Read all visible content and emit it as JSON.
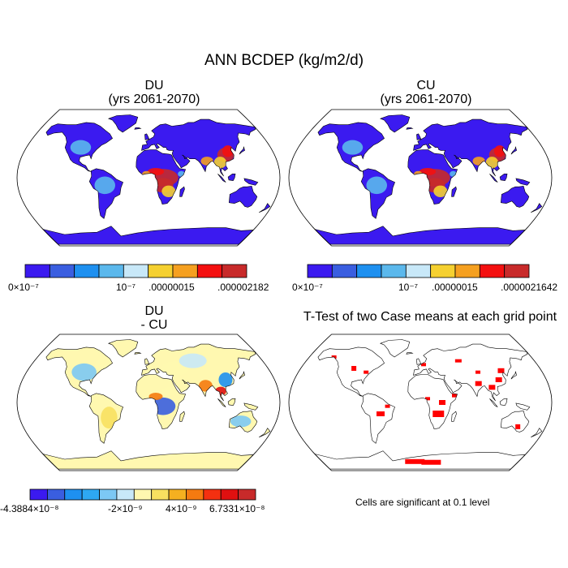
{
  "title": "ANN BCDEP (kg/m2/d)",
  "panels": [
    {
      "id": "du",
      "line1": "DU",
      "line2": "(yrs 2061-2070)"
    },
    {
      "id": "cu",
      "line1": "CU",
      "line2": "(yrs 2061-2070)"
    },
    {
      "id": "diff",
      "line1": "DU",
      "line2": "- CU"
    },
    {
      "id": "ttest",
      "line1": "T-Test of two Case means at each grid point"
    }
  ],
  "colorbars": {
    "du": {
      "colors": [
        "#3B1AF0",
        "#3A5EE0",
        "#1E90F0",
        "#5BB8EC",
        "#C8E8F8",
        "#F5D030",
        "#F5A020",
        "#F41010",
        "#C82A2A"
      ],
      "labels": [
        "0×10⁻⁷",
        "10⁻⁷",
        ".00000015",
        ".000002182"
      ]
    },
    "cu": {
      "colors": [
        "#3B1AF0",
        "#3A5EE0",
        "#1E90F0",
        "#5BB8EC",
        "#C8E8F8",
        "#F5D030",
        "#F5A020",
        "#F41010",
        "#C82A2A"
      ],
      "labels": [
        "0×10⁻⁷",
        "10⁻⁷",
        ".00000015",
        ".0000021642"
      ]
    },
    "diff": {
      "colors": [
        "#3B1AF0",
        "#3A5EE0",
        "#1E90F0",
        "#2EA8F2",
        "#7CC8F4",
        "#C8E8F8",
        "#FFF8B0",
        "#F8E060",
        "#F5B020",
        "#F57A10",
        "#F43010",
        "#E01010",
        "#C82A2A"
      ],
      "labels": [
        "-4.3884×10⁻⁸",
        "-2×10⁻⁹",
        "4×10⁻⁹",
        "6.7331×10⁻⁸"
      ]
    }
  },
  "note": "Cells are significant at 0.1 level",
  "colors": {
    "significant": "#FF0000",
    "outline": "#000000"
  }
}
